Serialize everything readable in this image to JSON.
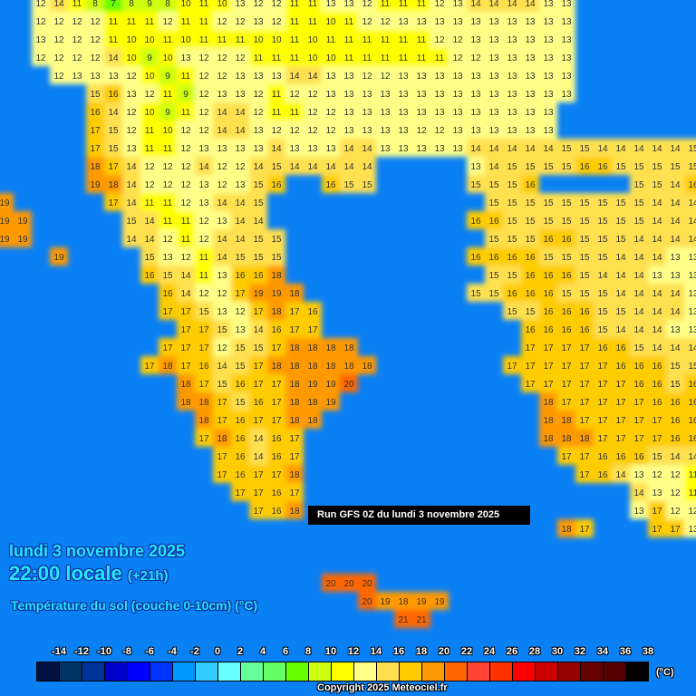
{
  "header": {
    "date": "lundi 3 novembre 2025",
    "time": "22:00 locale",
    "offset": "(+21h)",
    "layer": "Température du sol (couche 0-10cm) (°C)",
    "run": "Run GFS 0Z du lundi 3 novembre 2025"
  },
  "colors": {
    "sea": "#0a80f5",
    "label_text": "#333333"
  },
  "legend": {
    "ticks": [
      "-14",
      "-12",
      "-10",
      "-8",
      "-6",
      "-4",
      "-2",
      "0",
      "2",
      "4",
      "6",
      "8",
      "10",
      "12",
      "14",
      "16",
      "18",
      "20",
      "22",
      "24",
      "26",
      "28",
      "30",
      "32",
      "34",
      "36",
      "38"
    ],
    "colors": [
      "#001040",
      "#003366",
      "#003399",
      "#0000cc",
      "#0000ff",
      "#0033ff",
      "#0099ff",
      "#33ccff",
      "#66ffff",
      "#66ff99",
      "#66ff66",
      "#66ff00",
      "#ccff11",
      "#ffff00",
      "#ffff88",
      "#ffe050",
      "#ffcc00",
      "#ff9900",
      "#ff6600",
      "#ff4433",
      "#ff3300",
      "#ff0000",
      "#cc0000",
      "#990000",
      "#660000",
      "#550000",
      "#000000"
    ],
    "unit": "(°C)"
  },
  "copyright": "Copyright 2025 Meteociel.fr",
  "grid": [
    {
      "r": 0,
      "c": 2,
      "v": [
        12,
        14,
        11,
        8,
        7,
        8,
        9,
        8,
        10,
        11,
        10,
        13,
        12,
        12,
        11,
        11,
        13,
        13,
        12,
        11,
        11,
        11,
        12,
        13,
        14,
        14,
        14,
        14,
        13,
        13
      ]
    },
    {
      "r": 1,
      "c": 2,
      "v": [
        12,
        12,
        12,
        12,
        11,
        11,
        11,
        12,
        11,
        11,
        12,
        12,
        13,
        12,
        11,
        11,
        10,
        11,
        12,
        12,
        13,
        13,
        13,
        13,
        13,
        13,
        13,
        13,
        13,
        13
      ]
    },
    {
      "r": 2,
      "c": 2,
      "v": [
        13,
        12,
        12,
        12,
        11,
        10,
        10,
        11,
        10,
        11,
        11,
        11,
        10,
        10,
        11,
        10,
        11,
        11,
        11,
        11,
        11,
        11,
        12,
        12,
        13,
        13,
        13,
        13,
        13,
        13
      ]
    },
    {
      "r": 3,
      "c": 2,
      "v": [
        12,
        12,
        12,
        12,
        14,
        10,
        9,
        10,
        13,
        12,
        12,
        12,
        11,
        11,
        11,
        10,
        10,
        11,
        11,
        11,
        11,
        11,
        11,
        12,
        12,
        13,
        13,
        13,
        13,
        13
      ]
    },
    {
      "r": 4,
      "c": 3,
      "v": [
        12,
        13,
        13,
        13,
        12,
        10,
        9,
        11,
        12,
        12,
        13,
        13,
        13,
        14,
        14,
        13,
        13,
        12,
        12,
        13,
        13,
        13,
        13,
        13,
        13,
        13,
        13,
        13,
        13
      ]
    },
    {
      "r": 5,
      "c": 5,
      "v": [
        15,
        16,
        13,
        12,
        11,
        9,
        12,
        13,
        13,
        12,
        11,
        12,
        12,
        13,
        13,
        13,
        13,
        13,
        13,
        13,
        13,
        13,
        13,
        13,
        13,
        13,
        13
      ]
    },
    {
      "r": 6,
      "c": 5,
      "v": [
        16,
        14,
        12,
        10,
        9,
        11,
        12,
        14,
        14,
        12,
        11,
        11,
        12,
        12,
        13,
        13,
        13,
        13,
        13,
        13,
        13,
        13,
        13,
        13,
        13,
        13
      ]
    },
    {
      "r": 7,
      "c": 5,
      "v": [
        17,
        15,
        12,
        11,
        10,
        12,
        12,
        14,
        14,
        13,
        12,
        12,
        12,
        12,
        13,
        13,
        13,
        13,
        12,
        12,
        13,
        13,
        13,
        13,
        13,
        13
      ]
    },
    {
      "r": 8,
      "c": 5,
      "v": [
        17,
        15,
        13,
        11,
        11,
        12,
        13,
        13,
        13,
        13,
        14,
        13,
        13,
        13,
        14,
        14,
        13,
        13,
        13,
        13,
        13,
        14,
        14,
        14,
        14,
        14,
        15,
        15,
        14,
        14,
        14,
        14,
        14,
        15
      ]
    },
    {
      "r": 9,
      "c": 5,
      "v": [
        18,
        17,
        14,
        12,
        12,
        12,
        14,
        12,
        12,
        14,
        15,
        14,
        14,
        14,
        14,
        14
      ]
    },
    {
      "r": 9,
      "c": 26,
      "v": [
        13,
        14,
        15,
        15,
        15,
        15,
        16,
        16,
        15,
        15,
        15,
        15,
        15
      ]
    },
    {
      "r": 10,
      "c": 5,
      "v": [
        19,
        18,
        14,
        12,
        12,
        12,
        13,
        12,
        13,
        15,
        16
      ]
    },
    {
      "r": 10,
      "c": 18,
      "v": [
        16,
        15,
        15
      ]
    },
    {
      "r": 10,
      "c": 26,
      "v": [
        15,
        15,
        15,
        16
      ]
    },
    {
      "r": 10,
      "c": 35,
      "v": [
        15,
        15,
        14,
        16
      ]
    },
    {
      "r": 11,
      "c": 0,
      "v": [
        19
      ]
    },
    {
      "r": 11,
      "c": 6,
      "v": [
        17,
        14,
        11,
        11,
        12,
        13,
        14,
        14,
        15
      ]
    },
    {
      "r": 11,
      "c": 27,
      "v": [
        15,
        15,
        15,
        15,
        15,
        15,
        15,
        15,
        15,
        14,
        14,
        14
      ]
    },
    {
      "r": 12,
      "c": 0,
      "v": [
        19,
        19
      ]
    },
    {
      "r": 12,
      "c": 7,
      "v": [
        15,
        14,
        11,
        11,
        12,
        13,
        14,
        14
      ]
    },
    {
      "r": 12,
      "c": 26,
      "v": [
        16,
        16,
        15,
        15,
        15,
        15,
        15,
        15,
        15,
        15,
        14,
        14,
        14
      ]
    },
    {
      "r": 13,
      "c": 0,
      "v": [
        19,
        19
      ]
    },
    {
      "r": 13,
      "c": 7,
      "v": [
        14,
        14,
        12,
        11,
        12,
        14,
        14,
        15,
        15
      ]
    },
    {
      "r": 13,
      "c": 27,
      "v": [
        15,
        15,
        15,
        16,
        16,
        15,
        15,
        15,
        14,
        14,
        14,
        14
      ]
    },
    {
      "r": 14,
      "c": 3,
      "v": [
        19
      ]
    },
    {
      "r": 14,
      "c": 8,
      "v": [
        15,
        13,
        12,
        11,
        14,
        15,
        15,
        15
      ]
    },
    {
      "r": 14,
      "c": 26,
      "v": [
        16,
        16,
        16,
        16,
        15,
        15,
        15,
        15,
        14,
        14,
        14,
        13,
        13
      ]
    },
    {
      "r": 15,
      "c": 8,
      "v": [
        16,
        15,
        14,
        11,
        13,
        16,
        16,
        18
      ]
    },
    {
      "r": 15,
      "c": 27,
      "v": [
        15,
        15,
        16,
        16,
        16,
        15,
        14,
        14,
        14,
        13,
        13,
        13
      ]
    },
    {
      "r": 16,
      "c": 9,
      "v": [
        16,
        14,
        12,
        12,
        17,
        19,
        19,
        18
      ]
    },
    {
      "r": 16,
      "c": 26,
      "v": [
        15,
        15,
        16,
        16,
        16,
        15,
        15,
        15,
        14,
        14,
        14,
        14,
        13
      ]
    },
    {
      "r": 17,
      "c": 9,
      "v": [
        17,
        17,
        15,
        13,
        12,
        17,
        18,
        17,
        16
      ]
    },
    {
      "r": 17,
      "c": 28,
      "v": [
        15,
        15,
        16,
        16,
        16,
        15,
        15,
        14,
        14,
        14,
        13
      ]
    },
    {
      "r": 18,
      "c": 10,
      "v": [
        17,
        17,
        15,
        13,
        14,
        16,
        17,
        17
      ]
    },
    {
      "r": 18,
      "c": 29,
      "v": [
        16,
        16,
        16,
        16,
        15,
        14,
        14,
        14,
        13,
        13
      ]
    },
    {
      "r": 19,
      "c": 9,
      "v": [
        17,
        17,
        17,
        12,
        15,
        15,
        17,
        18,
        18,
        18,
        18
      ]
    },
    {
      "r": 19,
      "c": 29,
      "v": [
        17,
        17,
        17,
        17,
        16,
        16,
        15,
        14,
        14,
        14
      ]
    },
    {
      "r": 20,
      "c": 8,
      "v": [
        17,
        18,
        17,
        16,
        14,
        15,
        17,
        18,
        18,
        18,
        18,
        18,
        18
      ]
    },
    {
      "r": 20,
      "c": 28,
      "v": [
        17,
        17,
        17,
        17,
        17,
        17,
        16,
        16,
        16,
        15,
        15
      ]
    },
    {
      "r": 21,
      "c": 10,
      "v": [
        18,
        17,
        15,
        16,
        17,
        17,
        18,
        19,
        19,
        20
      ]
    },
    {
      "r": 21,
      "c": 29,
      "v": [
        17,
        17,
        17,
        17,
        17,
        17,
        16,
        16,
        15,
        16
      ]
    },
    {
      "r": 22,
      "c": 10,
      "v": [
        18,
        18,
        17,
        15,
        16,
        17,
        18,
        18,
        19
      ]
    },
    {
      "r": 22,
      "c": 30,
      "v": [
        18,
        17,
        17,
        17,
        17,
        17,
        16,
        16,
        16
      ]
    },
    {
      "r": 23,
      "c": 11,
      "v": [
        18,
        17,
        16,
        17,
        17,
        18,
        18
      ]
    },
    {
      "r": 23,
      "c": 30,
      "v": [
        18,
        18,
        17,
        17,
        17,
        17,
        17,
        16,
        16
      ]
    },
    {
      "r": 24,
      "c": 11,
      "v": [
        17,
        18,
        16,
        14,
        16,
        17
      ]
    },
    {
      "r": 24,
      "c": 30,
      "v": [
        18,
        18,
        18,
        17,
        17,
        17,
        17,
        16,
        16
      ]
    },
    {
      "r": 25,
      "c": 12,
      "v": [
        17,
        16,
        14,
        16,
        17
      ]
    },
    {
      "r": 25,
      "c": 31,
      "v": [
        17,
        17,
        16,
        16,
        16,
        15,
        14,
        14
      ]
    },
    {
      "r": 26,
      "c": 12,
      "v": [
        17,
        16,
        17,
        17,
        18
      ]
    },
    {
      "r": 26,
      "c": 32,
      "v": [
        17,
        16,
        14,
        13,
        12,
        12,
        11
      ]
    },
    {
      "r": 27,
      "c": 13,
      "v": [
        17,
        17,
        16,
        17
      ]
    },
    {
      "r": 27,
      "c": 35,
      "v": [
        14,
        13,
        12,
        11
      ]
    },
    {
      "r": 28,
      "c": 14,
      "v": [
        17,
        16,
        18
      ]
    },
    {
      "r": 28,
      "c": 35,
      "v": [
        13,
        17,
        12,
        12
      ]
    },
    {
      "r": 29,
      "c": 31,
      "v": [
        18,
        17
      ]
    },
    {
      "r": 29,
      "c": 36,
      "v": [
        17,
        17,
        13
      ]
    },
    {
      "r": 32,
      "c": 18,
      "v": [
        20,
        20,
        20
      ]
    },
    {
      "r": 33,
      "c": 20,
      "v": [
        20,
        19,
        18,
        19,
        19
      ]
    },
    {
      "r": 34,
      "c": 22,
      "v": [
        21,
        21
      ]
    }
  ]
}
